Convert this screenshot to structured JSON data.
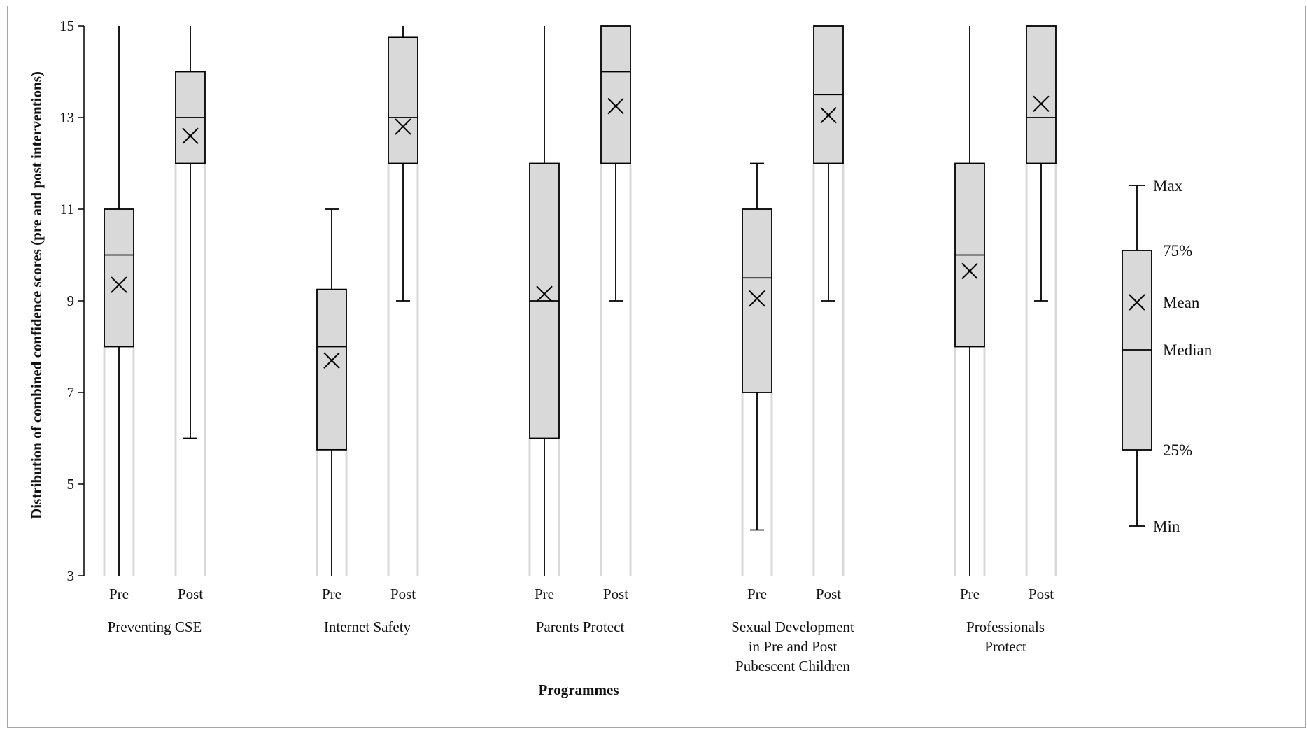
{
  "chart_data": {
    "type": "boxplot",
    "xlabel": "Programmes",
    "ylabel": "Distribution of combined confidence scores (pre and post interventions)",
    "ylim": [
      3,
      15
    ],
    "yticks": [
      3,
      5,
      7,
      9,
      11,
      13,
      15
    ],
    "groups": [
      {
        "name": "Preventing CSE",
        "lines": [
          "Preventing CSE"
        ],
        "boxes": [
          {
            "label": "Pre",
            "min": 3,
            "q1": 8,
            "median": 10,
            "q3": 11,
            "max": 15,
            "mean": 9.35
          },
          {
            "label": "Post",
            "min": 6,
            "q1": 12,
            "median": 13,
            "q3": 14,
            "max": 15,
            "mean": 12.6
          }
        ]
      },
      {
        "name": "Internet Safety",
        "lines": [
          "Internet Safety"
        ],
        "boxes": [
          {
            "label": "Pre",
            "min": 3,
            "q1": 5.75,
            "median": 8,
            "q3": 9.25,
            "max": 11,
            "mean": 7.7
          },
          {
            "label": "Post",
            "min": 9,
            "q1": 12,
            "median": 13,
            "q3": 14.75,
            "max": 15,
            "mean": 12.8
          }
        ]
      },
      {
        "name": "Parents Protect",
        "lines": [
          "Parents Protect"
        ],
        "boxes": [
          {
            "label": "Pre",
            "min": 3,
            "q1": 6,
            "median": 9,
            "q3": 12,
            "max": 15,
            "mean": 9.15
          },
          {
            "label": "Post",
            "min": 9,
            "q1": 12,
            "median": 14,
            "q3": 15,
            "max": 15,
            "mean": 13.25
          }
        ]
      },
      {
        "name": "Sexual Development in Pre and Post Pubescent Children",
        "lines": [
          "Sexual Development",
          "in Pre and Post",
          "Pubescent Children"
        ],
        "boxes": [
          {
            "label": "Pre",
            "min": 4,
            "q1": 7,
            "median": 9.5,
            "q3": 11,
            "max": 12,
            "mean": 9.05
          },
          {
            "label": "Post",
            "min": 9,
            "q1": 12,
            "median": 13.5,
            "q3": 15,
            "max": 15,
            "mean": 13.05
          }
        ]
      },
      {
        "name": "Professionals Protect",
        "lines": [
          "Professionals",
          "Protect"
        ],
        "boxes": [
          {
            "label": "Pre",
            "min": 3,
            "q1": 8,
            "median": 10,
            "q3": 12,
            "max": 15,
            "mean": 9.65
          },
          {
            "label": "Post",
            "min": 9,
            "q1": 12,
            "median": 13,
            "q3": 15,
            "max": 15,
            "mean": 13.3
          }
        ]
      }
    ],
    "legend": {
      "labels": {
        "max": "Max",
        "q3": "75%",
        "mean": "Mean",
        "median": "Median",
        "q1": "25%",
        "min": "Min"
      }
    },
    "colors": {
      "box_fill": "#d9d9d9",
      "stroke": "#000000",
      "shadow": "#d9d9d9",
      "border": "#a6a6a6"
    },
    "grid": false
  }
}
